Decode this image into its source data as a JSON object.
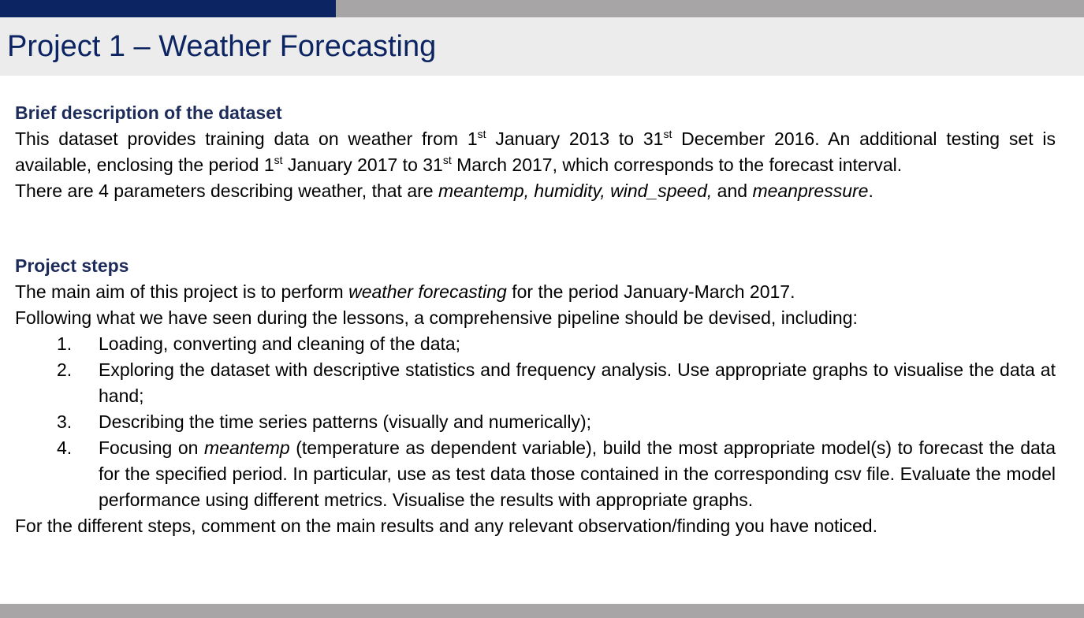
{
  "theme": {
    "navy": "#0c2461",
    "grey_bar": "#a7a5a5",
    "title_band": "#ececec",
    "heading": "#1c2b5a"
  },
  "title": "Project 1 – Weather Forecasting",
  "dataset": {
    "heading": "Brief description of the dataset",
    "line1": {
      "a": "This dataset provides training data on weather from 1",
      "sup1": "st",
      "b": " January 2013 to 31",
      "sup2": "st",
      "c": " December 2016. An additional testing"
    },
    "line2": {
      "a": "set is available, enclosing the period 1",
      "sup1": "st",
      "b": " January 2017 to 31",
      "sup2": "st",
      "c": " March 2017, which corresponds to the forecast interval."
    },
    "line3": {
      "a": "There are 4 parameters describing weather, that are ",
      "p1": "meantemp, humidity, wind_speed,",
      "b": " and ",
      "p2": "meanpressure",
      "c": "."
    }
  },
  "steps": {
    "heading": "Project steps",
    "aim": {
      "a": "The main aim of this project is to perform ",
      "em": "weather forecasting",
      "b": " for the period January-March 2017."
    },
    "intro": "Following what we have seen during the lessons, a comprehensive pipeline should be devised, including:",
    "items": [
      {
        "num": "1.",
        "text": "Loading, converting and cleaning of the data;"
      },
      {
        "num": "2.",
        "text": "Exploring the dataset with descriptive statistics and frequency analysis. Use appropriate graphs to visualise the data at hand;"
      },
      {
        "num": "3.",
        "text": "Describing the time series patterns (visually and numerically);"
      },
      {
        "num": "4.",
        "a": "Focusing on ",
        "em": "meantemp",
        "b": " (temperature as dependent variable), build the most appropriate model(s) to forecast the data for the specified period. In particular, use as test data those contained in the corresponding csv file. Evaluate the model performance using different metrics. Visualise the results with appropriate graphs."
      }
    ],
    "closing": "For the different steps, comment on the main results and any relevant observation/finding you have noticed."
  }
}
